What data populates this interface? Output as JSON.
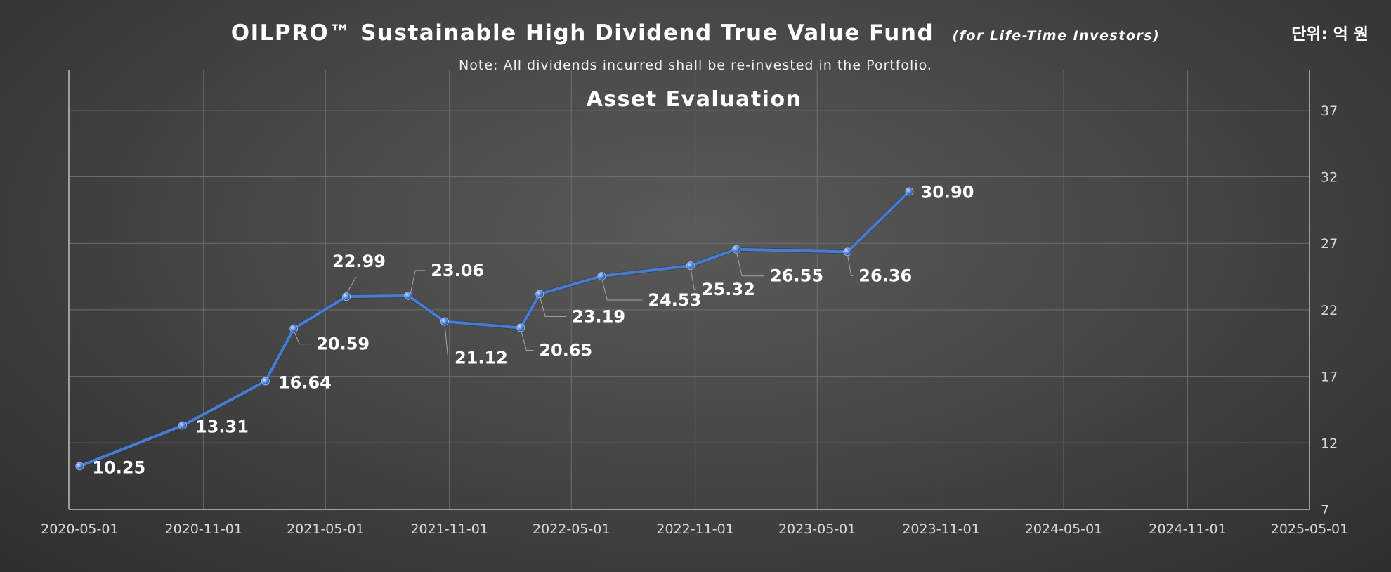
{
  "header": {
    "title": "OILPRO™ Sustainable High Dividend True Value Fund",
    "title_suffix": "(for Life-Time Investors)",
    "note": "Note: All dividends incurred shall be re-invested in the Portfolio.",
    "unit": "단위: 억 원"
  },
  "chart_data": {
    "type": "line",
    "title": "Asset Evaluation",
    "xlabel": "",
    "ylabel": "",
    "x_ticks": [
      "2020-05-01",
      "2020-11-01",
      "2021-05-01",
      "2021-11-01",
      "2022-05-01",
      "2022-11-01",
      "2023-05-01",
      "2023-11-01",
      "2024-05-01",
      "2024-11-01",
      "2025-05-01"
    ],
    "y_ticks": [
      7,
      12,
      17,
      22,
      27,
      32,
      37
    ],
    "ylim": [
      7,
      40
    ],
    "xlim": [
      "2020-04-15",
      "2025-05-01"
    ],
    "y_axis_position": "right",
    "grid": true,
    "legend": "none",
    "series": [
      {
        "color": "#4a7cc9",
        "points": [
          {
            "x": "2020-05-01",
            "y": 10.25,
            "label": "10.25"
          },
          {
            "x": "2020-10-01",
            "y": 13.31,
            "label": "13.31"
          },
          {
            "x": "2021-02-01",
            "y": 16.64,
            "label": "16.64"
          },
          {
            "x": "2021-03-15",
            "y": 20.59,
            "label": "20.59"
          },
          {
            "x": "2021-06-01",
            "y": 22.99,
            "label": "22.99"
          },
          {
            "x": "2021-09-01",
            "y": 23.06,
            "label": "23.06"
          },
          {
            "x": "2021-10-25",
            "y": 21.12,
            "label": "21.12"
          },
          {
            "x": "2022-02-15",
            "y": 20.65,
            "label": "20.65"
          },
          {
            "x": "2022-03-15",
            "y": 23.19,
            "label": "23.19"
          },
          {
            "x": "2022-06-15",
            "y": 24.53,
            "label": "24.53"
          },
          {
            "x": "2022-10-25",
            "y": 25.32,
            "label": "25.32"
          },
          {
            "x": "2023-01-01",
            "y": 26.55,
            "label": "26.55"
          },
          {
            "x": "2023-06-15",
            "y": 26.36,
            "label": "26.36"
          },
          {
            "x": "2023-09-15",
            "y": 30.9,
            "label": "30.90"
          }
        ]
      }
    ]
  }
}
